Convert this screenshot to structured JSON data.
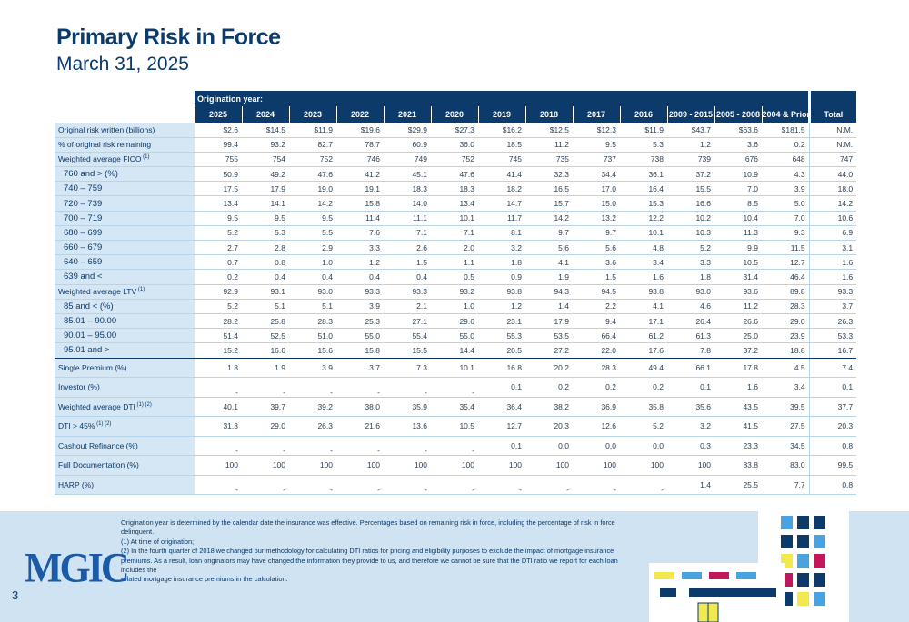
{
  "header": {
    "title": "Primary Risk in Force",
    "subtitle": "March 31, 2025"
  },
  "table": {
    "group_header": "Origination year:",
    "columns": [
      "2025",
      "2024",
      "2023",
      "2022",
      "2021",
      "2020",
      "2019",
      "2018",
      "2017",
      "2016",
      "2009 - 2015",
      "2005 - 2008",
      "2004 & Prior",
      "Total"
    ],
    "rows": [
      {
        "label": "Original risk written (billions)",
        "values": [
          "$2.6",
          "$14.5",
          "$11.9",
          "$19.6",
          "$29.9",
          "$27.3",
          "$16.2",
          "$12.5",
          "$12.3",
          "$11.9",
          "$43.7",
          "$63.6",
          "$181.5",
          "N.M."
        ]
      },
      {
        "label": "% of original risk remaining",
        "values": [
          "99.4",
          "93.2",
          "82.7",
          "78.7",
          "60.9",
          "36.0",
          "18.5",
          "11.2",
          "9.5",
          "5.3",
          "1.2",
          "3.6",
          "0.2",
          "N.M."
        ]
      },
      {
        "label": "Weighted average FICO",
        "sup": "(1)",
        "values": [
          "755",
          "754",
          "752",
          "746",
          "749",
          "752",
          "745",
          "735",
          "737",
          "738",
          "739",
          "676",
          "648",
          "747"
        ]
      },
      {
        "label": "760 and > (%)",
        "indent": true,
        "values": [
          "50.9",
          "49.2",
          "47.6",
          "41.2",
          "45.1",
          "47.6",
          "41.4",
          "32.3",
          "34.4",
          "36.1",
          "37.2",
          "10.9",
          "4.3",
          "44.0"
        ]
      },
      {
        "label": "740 – 759",
        "indent": true,
        "values": [
          "17.5",
          "17.9",
          "19.0",
          "19.1",
          "18.3",
          "18.3",
          "18.2",
          "16.5",
          "17.0",
          "16.4",
          "15.5",
          "7.0",
          "3.9",
          "18.0"
        ]
      },
      {
        "label": "720 – 739",
        "indent": true,
        "values": [
          "13.4",
          "14.1",
          "14.2",
          "15.8",
          "14.0",
          "13.4",
          "14.7",
          "15.7",
          "15.0",
          "15.3",
          "16.6",
          "8.5",
          "5.0",
          "14.2"
        ]
      },
      {
        "label": "700 – 719",
        "indent": true,
        "values": [
          "9.5",
          "9.5",
          "9.5",
          "11.4",
          "11.1",
          "10.1",
          "11.7",
          "14.2",
          "13.2",
          "12.2",
          "10.2",
          "10.4",
          "7.0",
          "10.6"
        ]
      },
      {
        "label": "680 – 699",
        "indent": true,
        "values": [
          "5.2",
          "5.3",
          "5.5",
          "7.6",
          "7.1",
          "7.1",
          "8.1",
          "9.7",
          "9.7",
          "10.1",
          "10.3",
          "11.3",
          "9.3",
          "6.9"
        ]
      },
      {
        "label": "660 – 679",
        "indent": true,
        "values": [
          "2.7",
          "2.8",
          "2.9",
          "3.3",
          "2.6",
          "2.0",
          "3.2",
          "5.6",
          "5.6",
          "4.8",
          "5.2",
          "9.9",
          "11.5",
          "3.1"
        ]
      },
      {
        "label": "640 – 659",
        "indent": true,
        "values": [
          "0.7",
          "0.8",
          "1.0",
          "1.2",
          "1.5",
          "1.1",
          "1.8",
          "4.1",
          "3.6",
          "3.4",
          "3.3",
          "10.5",
          "12.7",
          "1.6"
        ]
      },
      {
        "label": "639 and <",
        "indent": true,
        "values": [
          "0.2",
          "0.4",
          "0.4",
          "0.4",
          "0.4",
          "0.5",
          "0.9",
          "1.9",
          "1.5",
          "1.6",
          "1.8",
          "31.4",
          "46.4",
          "1.6"
        ]
      },
      {
        "label": "Weighted average LTV",
        "sup": "(1)",
        "values": [
          "92.9",
          "93.1",
          "93.0",
          "93.3",
          "93.3",
          "93.2",
          "93.8",
          "94.3",
          "94.5",
          "93.8",
          "93.0",
          "93.6",
          "89.8",
          "93.3"
        ]
      },
      {
        "label": "85 and < (%)",
        "indent": true,
        "values": [
          "5.2",
          "5.1",
          "5.1",
          "3.9",
          "2.1",
          "1.0",
          "1.2",
          "1.4",
          "2.2",
          "4.1",
          "4.6",
          "11.2",
          "28.3",
          "3.7"
        ]
      },
      {
        "label": "85.01 – 90.00",
        "indent": true,
        "values": [
          "28.2",
          "25.8",
          "28.3",
          "25.3",
          "27.1",
          "29.6",
          "23.1",
          "17.9",
          "9.4",
          "17.1",
          "26.4",
          "26.6",
          "29.0",
          "26.3"
        ]
      },
      {
        "label": "90.01 – 95.00",
        "indent": true,
        "values": [
          "51.4",
          "52.5",
          "51.0",
          "55.0",
          "55.4",
          "55.0",
          "55.3",
          "53.5",
          "66.4",
          "61.2",
          "61.3",
          "25.0",
          "23.9",
          "53.3"
        ]
      },
      {
        "label": "95.01 and >",
        "indent": true,
        "thick": true,
        "values": [
          "15.2",
          "16.6",
          "15.6",
          "15.8",
          "15.5",
          "14.4",
          "20.5",
          "27.2",
          "22.0",
          "17.6",
          "7.8",
          "37.2",
          "18.8",
          "16.7"
        ]
      },
      {
        "label": "Single Premium (%)",
        "tall": true,
        "values": [
          "1.8",
          "1.9",
          "3.9",
          "3.7",
          "7.3",
          "10.1",
          "16.8",
          "20.2",
          "28.3",
          "49.4",
          "66.1",
          "17.8",
          "4.5",
          "7.4"
        ]
      },
      {
        "label": "Investor (%)",
        "tall": true,
        "values": [
          "-",
          "-",
          "-",
          "-",
          "-",
          "-",
          "0.1",
          "0.2",
          "0.2",
          "0.2",
          "0.1",
          "1.6",
          "3.4",
          "0.1"
        ]
      },
      {
        "label": "Weighted average DTI",
        "sup": "(1) (2)",
        "tall": true,
        "values": [
          "40.1",
          "39.7",
          "39.2",
          "38.0",
          "35.9",
          "35.4",
          "36.4",
          "38.2",
          "36.9",
          "35.8",
          "35.6",
          "43.5",
          "39.5",
          "37.7"
        ]
      },
      {
        "label": "DTI > 45%",
        "sup": "(1) (2)",
        "tall": true,
        "values": [
          "31.3",
          "29.0",
          "26.3",
          "21.6",
          "13.6",
          "10.5",
          "12.7",
          "20.3",
          "12.6",
          "5.2",
          "3.2",
          "41.5",
          "27.5",
          "20.3"
        ]
      },
      {
        "label": "Cashout Refinance (%)",
        "tall": true,
        "values": [
          "-",
          "-",
          "-",
          "-",
          "-",
          "-",
          "0.1",
          "0.0",
          "0.0",
          "0.0",
          "0.3",
          "23.3",
          "34.5",
          "0.8"
        ]
      },
      {
        "label": "Full Documentation (%)",
        "tall": true,
        "values": [
          "100",
          "100",
          "100",
          "100",
          "100",
          "100",
          "100",
          "100",
          "100",
          "100",
          "100",
          "83.8",
          "83.0",
          "99.5"
        ]
      },
      {
        "label": "HARP (%)",
        "tall": true,
        "values": [
          "-",
          "-",
          "-",
          "-",
          "-",
          "-",
          "-",
          "-",
          "-",
          "-",
          "1.4",
          "25.5",
          "7.7",
          "0.8"
        ]
      }
    ]
  },
  "footnotes": [
    "Origination year is determined by the calendar date the insurance was effective. Percentages based on remaining risk in force, including the percentage of risk in force delinquent.",
    "(1)  At time of origination;",
    "(2)  In the fourth quarter of 2018 we changed our methodology for calculating DTI ratios for pricing and eligibility purposes to exclude the impact of mortgage insurance",
    "premiums. As a result, loan originators may have changed the information they provide to us, and therefore we cannot be sure that the DTI ratio we report for each loan includes the",
    "related mortgage insurance premiums in the calculation."
  ],
  "logo_text": "MGIC",
  "page_number": "3",
  "colors": {
    "navy": "#0b3a6b",
    "label_bg": "#d5e6f4",
    "footer_bg": "#cfe3f2",
    "accent_blue": "#4aa3df",
    "accent_pink": "#c2185b",
    "accent_yellow": "#f2e94e"
  }
}
